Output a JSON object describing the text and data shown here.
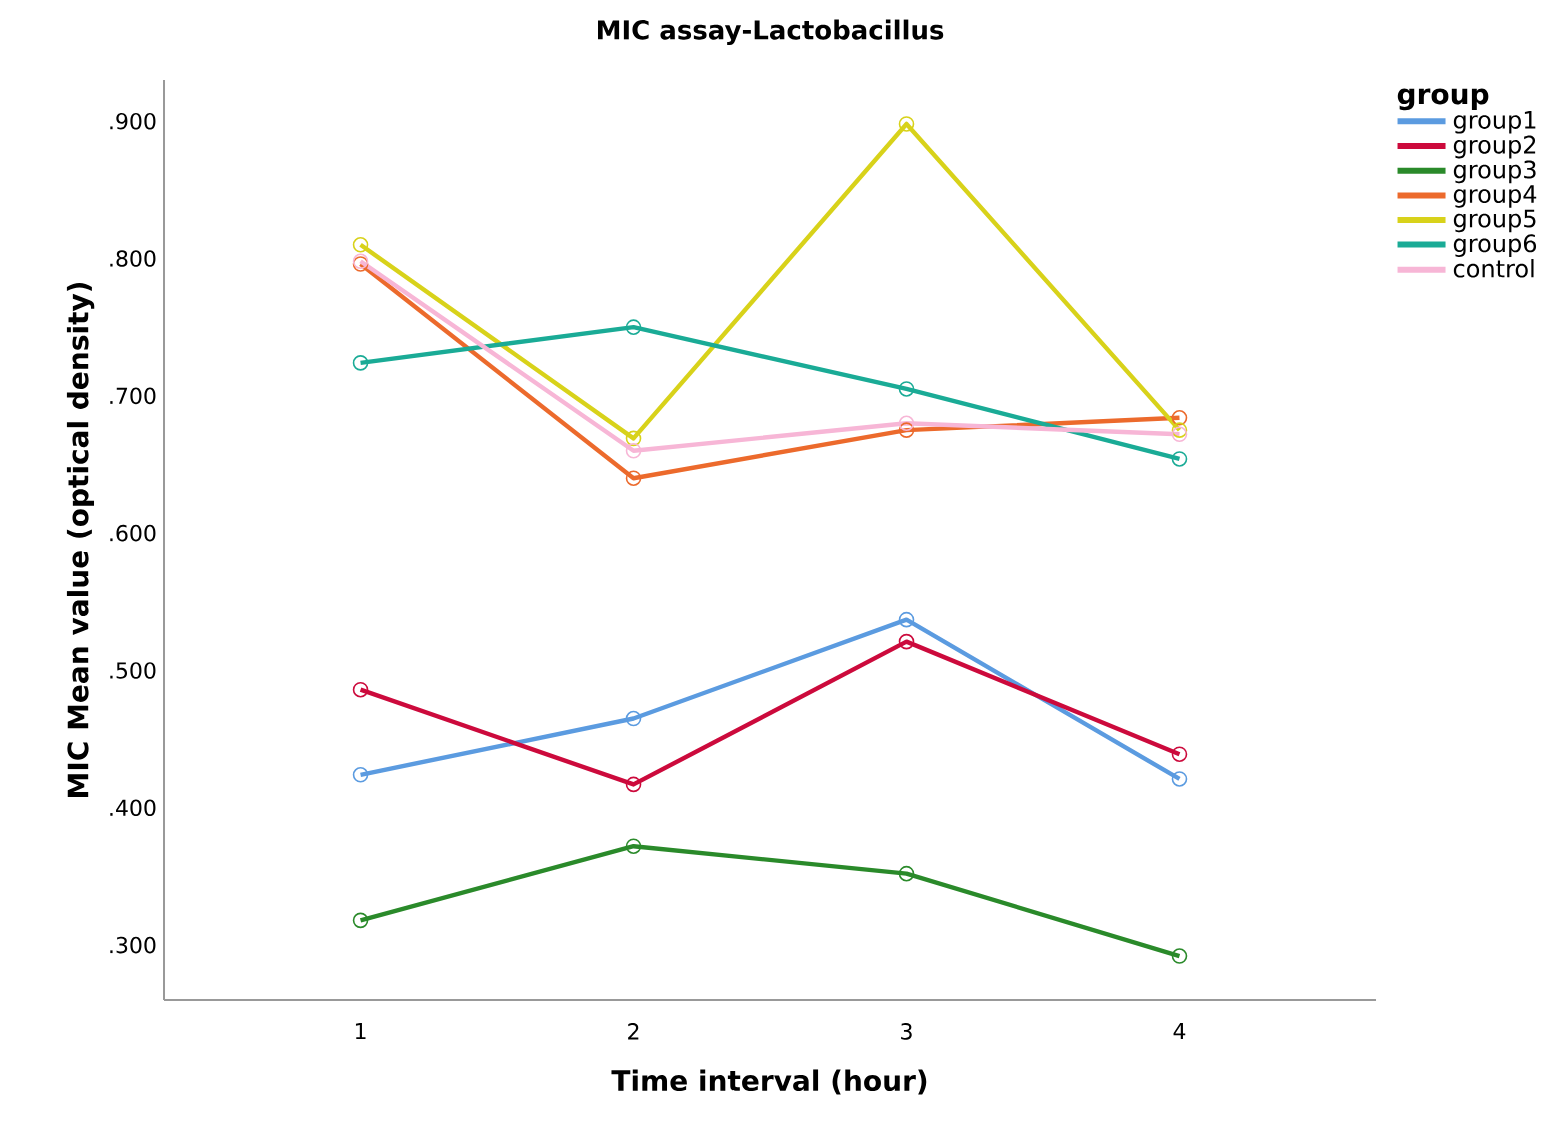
{
  "chart_data": {
    "type": "line",
    "title": "MIC assay-Lactobacillus",
    "xlabel": "Time interval (hour)",
    "ylabel": "MIC Mean value (optical density)",
    "legend_title": "group",
    "legend": "right",
    "marker": "circle",
    "grid": false,
    "x": [
      1,
      2,
      3,
      4
    ],
    "xlim": [
      0.28,
      4.72
    ],
    "xticks": [
      1,
      2,
      3,
      4
    ],
    "ylim": [
      0.26,
      0.93
    ],
    "yticks": [
      {
        "value": 0.3,
        "label": ".300"
      },
      {
        "value": 0.4,
        "label": ".400"
      },
      {
        "value": 0.5,
        "label": ".500"
      },
      {
        "value": 0.6,
        "label": ".600"
      },
      {
        "value": 0.7,
        "label": ".700"
      },
      {
        "value": 0.8,
        "label": ".800"
      },
      {
        "value": 0.9,
        "label": ".900"
      }
    ],
    "series": [
      {
        "name": "group1",
        "color": "#5b9be0",
        "values": [
          0.424,
          0.465,
          0.537,
          0.421
        ]
      },
      {
        "name": "group2",
        "color": "#cc0a3c",
        "values": [
          0.486,
          0.417,
          0.521,
          0.439
        ]
      },
      {
        "name": "group3",
        "color": "#2a8a2a",
        "values": [
          0.318,
          0.372,
          0.352,
          0.292
        ]
      },
      {
        "name": "group4",
        "color": "#ec6a2c",
        "values": [
          0.796,
          0.64,
          0.675,
          0.684
        ]
      },
      {
        "name": "group5",
        "color": "#d8d21a",
        "values": [
          0.81,
          0.669,
          0.898,
          0.675
        ]
      },
      {
        "name": "group6",
        "color": "#1aab96",
        "values": [
          0.724,
          0.75,
          0.705,
          0.654
        ]
      },
      {
        "name": "control",
        "color": "#f7b6d6",
        "values": [
          0.798,
          0.66,
          0.68,
          0.672
        ]
      }
    ]
  }
}
